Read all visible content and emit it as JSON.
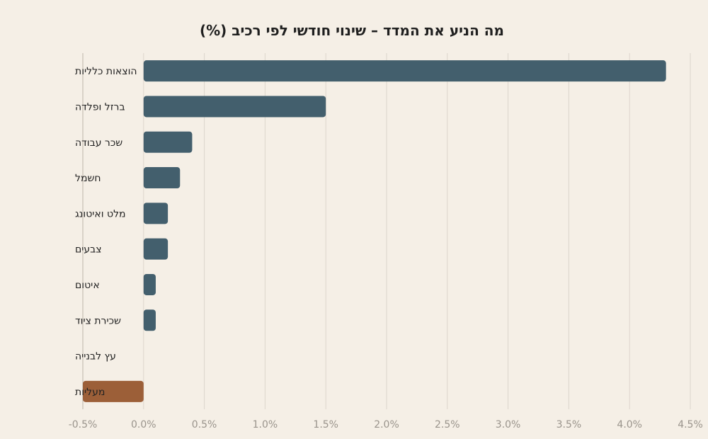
{
  "chart_data": {
    "type": "bar",
    "orientation": "horizontal",
    "title": "מה הניע את המדד – שינוי חודשי לפי רכיב (%)",
    "xlabel": "",
    "ylabel": "",
    "xlim": [
      -0.5,
      4.5
    ],
    "x_ticks": [
      -0.5,
      0,
      0.5,
      1,
      1.5,
      2,
      2.5,
      3,
      3.5,
      4,
      4.5
    ],
    "x_tick_labels": [
      "-0.5%",
      "0.0%",
      "0.5%",
      "1.0%",
      "1.5%",
      "2.0%",
      "2.5%",
      "3.0%",
      "3.5%",
      "4.0%",
      "4.5%"
    ],
    "grid": true,
    "legend": "none",
    "categories": [
      "הוצאות כלליות",
      "ברזל ופלדה",
      "שכר עבודה",
      "חשמל",
      "מלט ואיטונג",
      "צבעים",
      "איטום",
      "שכירת ציוד",
      "עץ לבנייה",
      "מעליות"
    ],
    "values": [
      4.3,
      1.5,
      0.4,
      0.3,
      0.2,
      0.2,
      0.1,
      0.1,
      0.0,
      -0.5
    ],
    "colors": {
      "positive": "#435f6d",
      "negative": "#9c5f38"
    }
  }
}
